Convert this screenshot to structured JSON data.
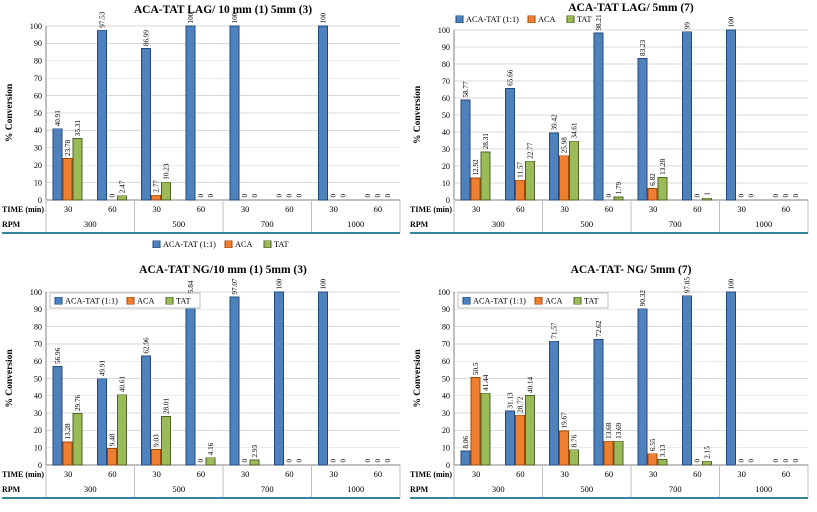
{
  "colors": {
    "aca_tat_fill": "#4F81BD",
    "aca_tat_stroke": "#1F497D",
    "aca_fill": "#EE7E30",
    "aca_stroke": "#9C4A08",
    "tat_fill": "#9BBB59",
    "tat_stroke": "#4F6228",
    "gridline": "#D9D9D9",
    "axis": "#808080",
    "separator": "#BFBFBF",
    "bottom_rule": "#31849B",
    "label_text": "#000000"
  },
  "axis_labels": {
    "y": "% Conversion",
    "time_row": "TIME (min)",
    "rpm_row": "RPM"
  },
  "legend_labels": [
    "ACA-TAT (1:1)",
    "ACA",
    "TAT"
  ],
  "chart_data": [
    {
      "type": "bar",
      "title": "ACA-TAT LAG/ 10 mm (1) 5mm (3)",
      "ylabel": "% Conversion",
      "ylim": [
        0,
        100
      ],
      "ytick_step": 10,
      "grid": true,
      "legend_position": "bottom-center",
      "categories_time": [
        "30",
        "60",
        "30",
        "60",
        "30",
        "60",
        "30",
        "60"
      ],
      "categories_rpm": [
        "300",
        "500",
        "700",
        "1000"
      ],
      "series": [
        {
          "name": "ACA-TAT (1:1)",
          "values": [
            40.91,
            97.53,
            86.99,
            100,
            100,
            0,
            100,
            0
          ]
        },
        {
          "name": "ACA",
          "values": [
            23.78,
            0,
            2.77,
            0,
            0,
            0,
            0,
            0
          ]
        },
        {
          "name": "TAT",
          "values": [
            35.31,
            2.47,
            10.23,
            0,
            0,
            0,
            0,
            0
          ]
        }
      ]
    },
    {
      "type": "bar",
      "title": "ACA-TAT LAG/ 5mm (7)",
      "ylabel": "% Conversion",
      "ylim": [
        0,
        100
      ],
      "ytick_step": 10,
      "grid": true,
      "legend_position": "top-left",
      "categories_time": [
        "30",
        "60",
        "30",
        "60",
        "30",
        "60",
        "30",
        "60"
      ],
      "categories_rpm": [
        "300",
        "500",
        "700",
        "1000"
      ],
      "series": [
        {
          "name": "ACA-TAT (1:1)",
          "values": [
            58.77,
            65.66,
            39.42,
            98.21,
            83.23,
            99,
            100,
            0
          ]
        },
        {
          "name": "ACA",
          "values": [
            12.92,
            11.57,
            25.98,
            0,
            6.82,
            0,
            0,
            0
          ]
        },
        {
          "name": "TAT",
          "values": [
            28.31,
            22.77,
            34.61,
            1.79,
            13.28,
            1,
            0,
            0
          ]
        }
      ]
    },
    {
      "type": "bar",
      "title": "ACA-TAT NG/10 mm (1) 5mm (3)",
      "ylabel": "% Conversion",
      "ylim": [
        0,
        100
      ],
      "ytick_step": 10,
      "grid": true,
      "legend_position": "inside-top-left",
      "categories_time": [
        "30",
        "60",
        "30",
        "60",
        "30",
        "60",
        "30",
        "60"
      ],
      "categories_rpm": [
        "300",
        "500",
        "700",
        "1000"
      ],
      "series": [
        {
          "name": "ACA-TAT (1:1)",
          "values": [
            56.96,
            49.91,
            62.96,
            95.84,
            97.07,
            100,
            100,
            0
          ]
        },
        {
          "name": "ACA",
          "values": [
            13.28,
            9.48,
            9.03,
            0,
            0,
            0,
            0,
            0
          ]
        },
        {
          "name": "TAT",
          "values": [
            29.76,
            40.61,
            28.01,
            4.16,
            2.93,
            0,
            0,
            0
          ]
        }
      ]
    },
    {
      "type": "bar",
      "title": "ACA-TAT- NG/ 5mm (7)",
      "ylabel": "% Conversion",
      "ylim": [
        0,
        100
      ],
      "ytick_step": 10,
      "grid": true,
      "legend_position": "inside-top-left",
      "categories_time": [
        "30",
        "60",
        "30",
        "60",
        "30",
        "60",
        "30",
        "60"
      ],
      "categories_rpm": [
        "300",
        "500",
        "700",
        "1000"
      ],
      "series": [
        {
          "name": "ACA-TAT (1:1)",
          "values": [
            8.06,
            31.13,
            71.57,
            72.62,
            90.32,
            97.85,
            100,
            0
          ]
        },
        {
          "name": "ACA",
          "values": [
            50.5,
            28.72,
            19.67,
            13.68,
            6.55,
            0,
            0,
            0
          ]
        },
        {
          "name": "TAT",
          "values": [
            41.44,
            40.14,
            8.76,
            13.69,
            3.13,
            2.15,
            0,
            0
          ]
        }
      ]
    }
  ]
}
